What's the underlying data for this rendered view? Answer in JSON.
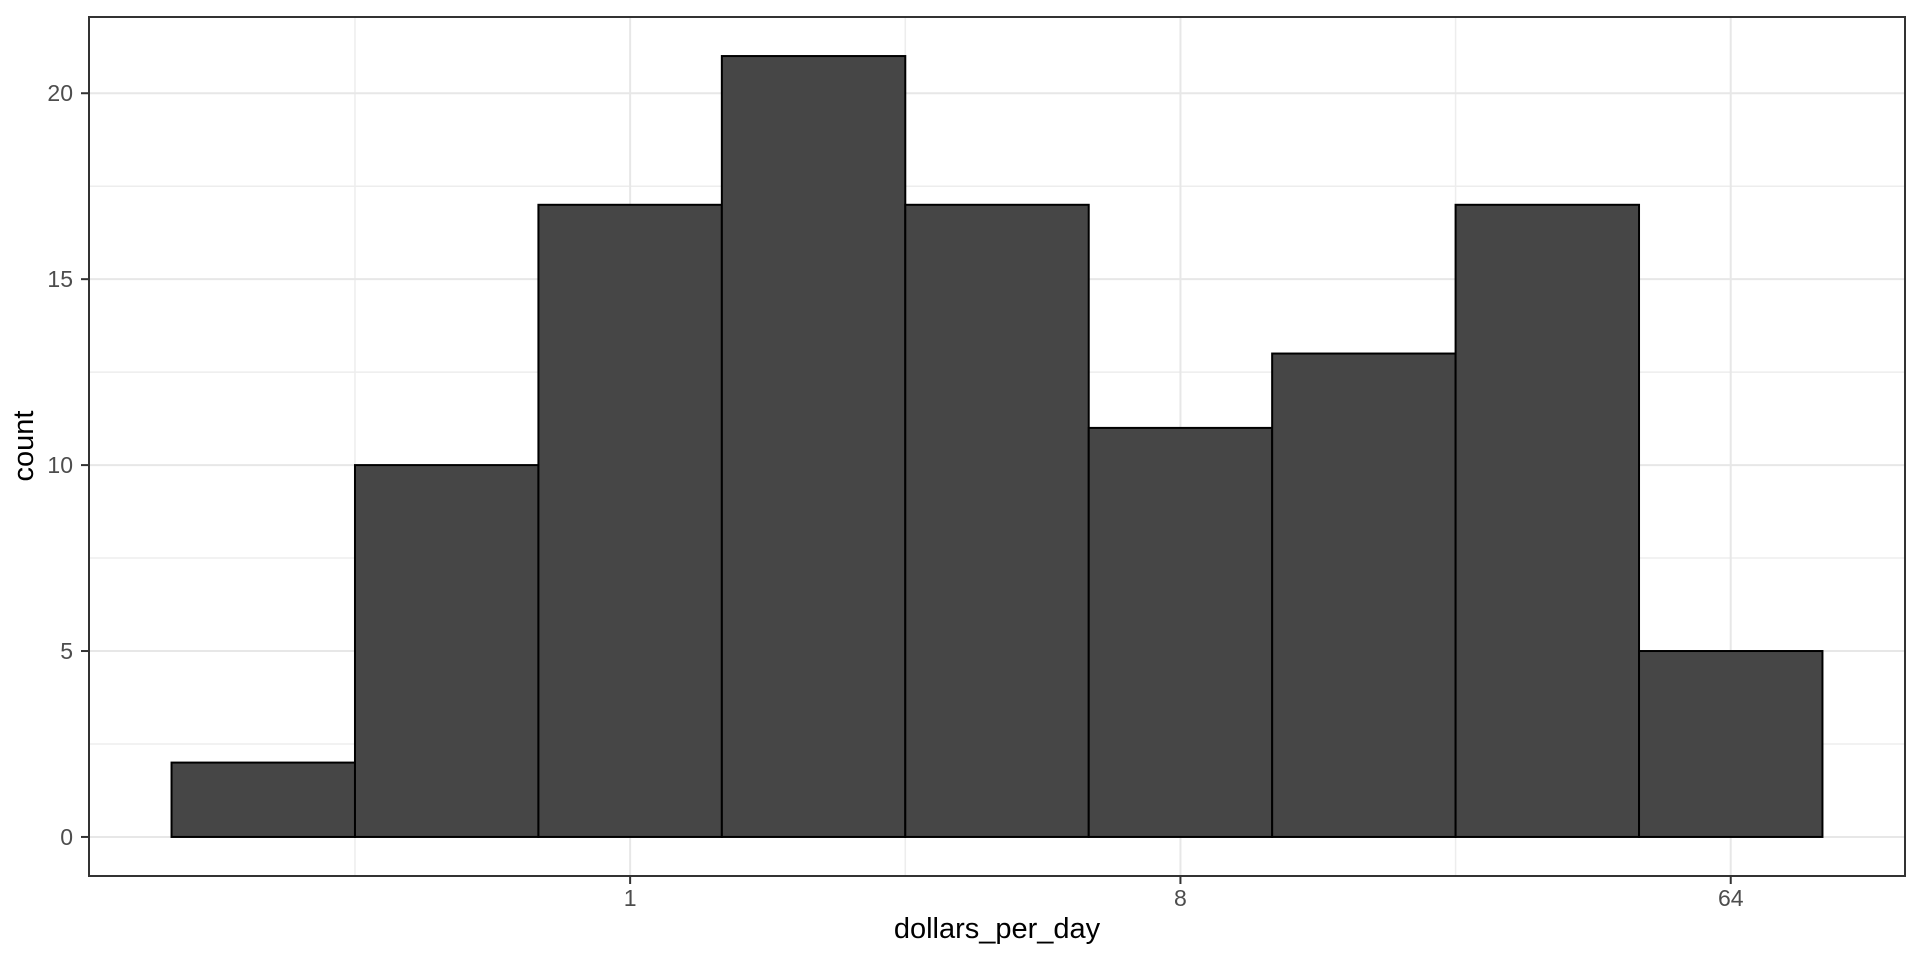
{
  "figure": {
    "background": "#ffffff",
    "panel_background": "#ffffff",
    "panel_border_color": "#333333",
    "grid_major_color": "#e7e7e7",
    "grid_minor_color": "#ededed",
    "tick_mark_color": "#333333",
    "tick_label_color": "#4d4d4d",
    "axis_title_color": "#000000",
    "bar_fill": "#464646",
    "bar_stroke": "#000000"
  },
  "chart_data": {
    "type": "bar",
    "subtype": "histogram",
    "title": "",
    "xlabel": "dollars_per_day",
    "ylabel": "count",
    "x_scale": "log2",
    "x_breaks": [
      1,
      8,
      64
    ],
    "x_break_labels": [
      "1",
      "8",
      "64"
    ],
    "x_minor_breaks_log2": [
      -1.5,
      1.5,
      4.5
    ],
    "x_domain_log2": [
      -2.95,
      6.95
    ],
    "y_breaks": [
      0,
      5,
      10,
      15,
      20
    ],
    "y_break_labels": [
      "0",
      "5",
      "10",
      "15",
      "20"
    ],
    "y_minor_breaks": [
      2.5,
      7.5,
      12.5,
      17.5
    ],
    "y_domain": [
      -1.05,
      22.05
    ],
    "grid": true,
    "legend": "none",
    "binwidth_log2": 1,
    "bin_centers": [
      0.25,
      0.5,
      1,
      2,
      4,
      8,
      16,
      32,
      64
    ],
    "values": [
      2,
      10,
      17,
      21,
      17,
      11,
      13,
      17,
      5
    ]
  }
}
